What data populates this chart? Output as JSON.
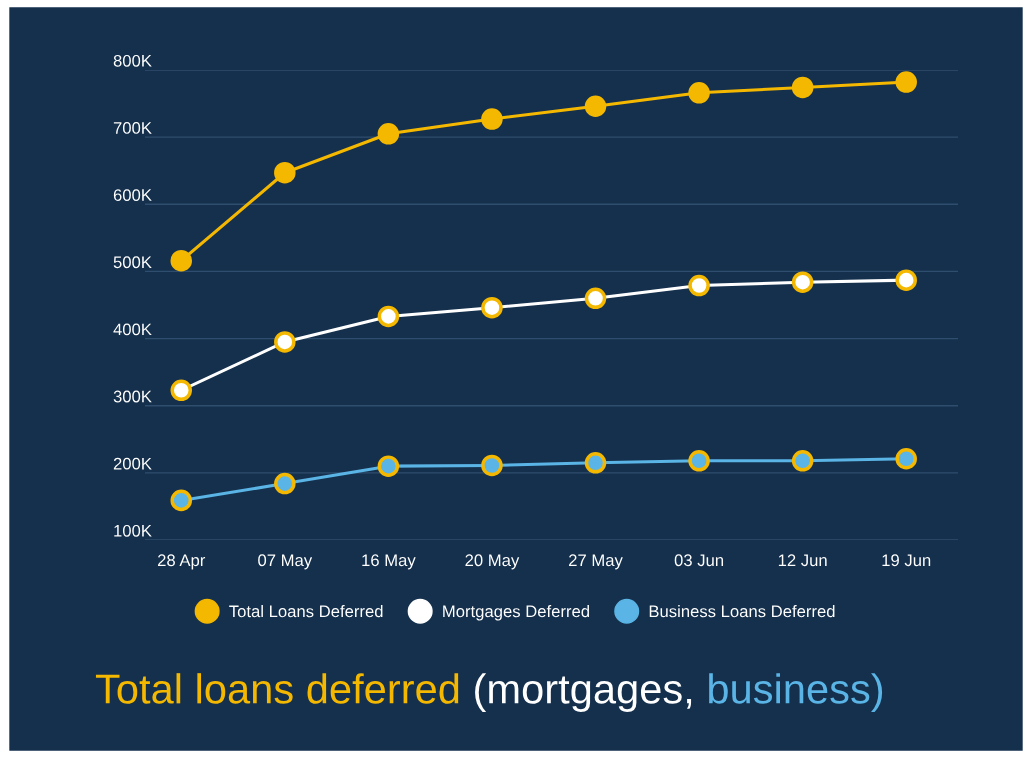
{
  "chart_data": {
    "type": "line",
    "title": "Total loans deferred (mortgages, business)",
    "categories": [
      "28 Apr",
      "07 May",
      "16 May",
      "20 May",
      "27 May",
      "03 Jun",
      "12 Jun",
      "19 Jun"
    ],
    "series": [
      {
        "name": "Total Loans Deferred",
        "color": "#f5b800",
        "values": [
          516,
          647,
          705,
          727,
          746,
          766,
          774,
          782
        ]
      },
      {
        "name": "Mortgages Deferred",
        "color": "#ffffff",
        "values": [
          323,
          395,
          433,
          446,
          460,
          479,
          484,
          487
        ]
      },
      {
        "name": "Business Loans Deferred",
        "color": "#5ab4e5",
        "values": [
          159,
          184,
          210,
          211,
          215,
          218,
          218,
          221
        ]
      }
    ],
    "ylim": [
      100,
      800
    ],
    "yticks": [
      {
        "value": 100,
        "label": "100K"
      },
      {
        "value": 200,
        "label": "200K"
      },
      {
        "value": 300,
        "label": "300K"
      },
      {
        "value": 400,
        "label": "400K"
      },
      {
        "value": 500,
        "label": "500K"
      },
      {
        "value": 600,
        "label": "600K"
      },
      {
        "value": 700,
        "label": "700K"
      },
      {
        "value": 800,
        "label": "800K"
      }
    ],
    "grid": "y",
    "legend": "bottom",
    "marker": "circle",
    "line_style": "solid"
  }
}
